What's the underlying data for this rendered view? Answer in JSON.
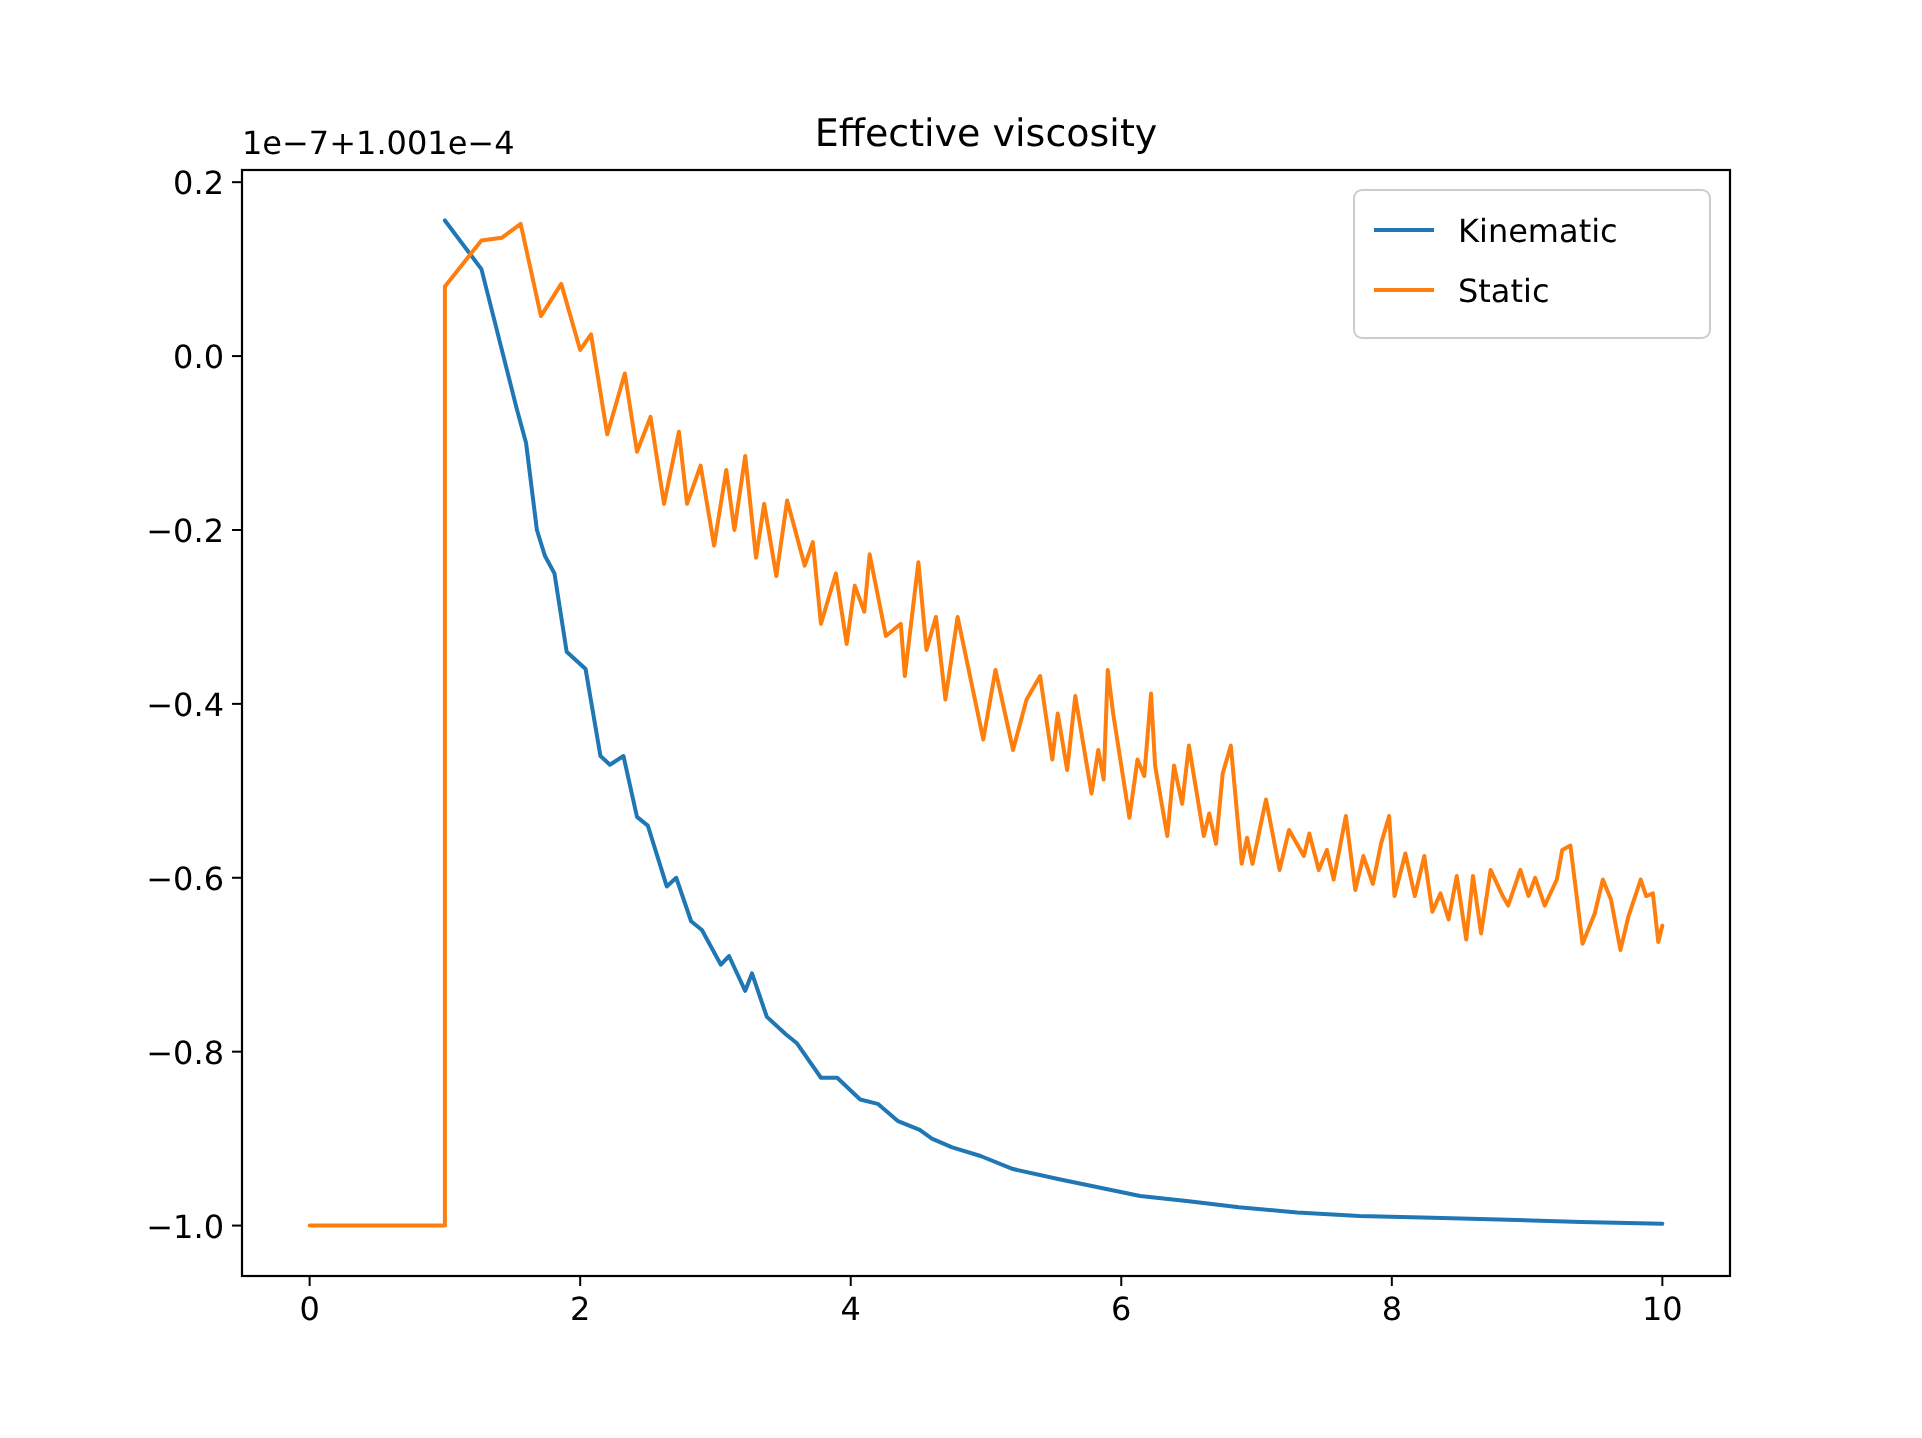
{
  "chart_data": {
    "type": "line",
    "title": "Effective viscosity",
    "annotations": [
      "1e−7+1.001e−4"
    ],
    "xlim": [
      -0.5,
      10.5
    ],
    "xticks": [
      0,
      2,
      4,
      6,
      8,
      10
    ],
    "ylim": [
      -1.058,
      0.214
    ],
    "yticks": [
      {
        "value": -1,
        "label": "−1.0"
      },
      {
        "value": -0.8,
        "label": "−0.8"
      },
      {
        "value": -0.6,
        "label": "−0.6"
      },
      {
        "value": -0.4,
        "label": "−0.4"
      },
      {
        "value": -0.2,
        "label": "−0.2"
      },
      {
        "value": 0,
        "label": "0.0"
      },
      {
        "value": 0.2,
        "label": "0.2"
      }
    ],
    "grid": false,
    "legend": "top right",
    "series": [
      {
        "name": "Kinematic",
        "color": "#1f77b4",
        "x": [
          1.0,
          1.27,
          1.53,
          1.6,
          1.68,
          1.74,
          1.81,
          1.9,
          2.04,
          2.15,
          2.22,
          2.32,
          2.42,
          2.5,
          2.64,
          2.71,
          2.82,
          2.9,
          3.04,
          3.1,
          3.22,
          3.27,
          3.38,
          3.52,
          3.6,
          3.78,
          3.9,
          4.07,
          4.2,
          4.35,
          4.51,
          4.6,
          4.75,
          4.96,
          5.2,
          5.55,
          5.8,
          6.14,
          6.5,
          6.87,
          7.3,
          7.76,
          8.3,
          8.79,
          9.4,
          10
        ],
        "values": [
          0.156,
          0.1,
          -0.06,
          -0.1,
          -0.2,
          -0.23,
          -0.25,
          -0.34,
          -0.36,
          -0.46,
          -0.47,
          -0.46,
          -0.53,
          -0.54,
          -0.61,
          -0.6,
          -0.65,
          -0.66,
          -0.7,
          -0.69,
          -0.73,
          -0.71,
          -0.76,
          -0.78,
          -0.79,
          -0.83,
          -0.83,
          -0.855,
          -0.86,
          -0.88,
          -0.89,
          -0.9,
          -0.91,
          -0.92,
          -0.935,
          -0.947,
          -0.955,
          -0.966,
          -0.972,
          -0.979,
          -0.985,
          -0.989,
          -0.991,
          -0.993,
          -0.996,
          -0.998
        ]
      },
      {
        "name": "Static",
        "color": "#ff7f0e",
        "x": [
          0,
          1,
          1.0,
          1.27,
          1.42,
          1.56,
          1.71,
          1.86,
          2.0,
          2.08,
          2.2,
          2.33,
          2.42,
          2.52,
          2.62,
          2.73,
          2.79,
          2.89,
          2.99,
          3.08,
          3.14,
          3.22,
          3.3,
          3.36,
          3.45,
          3.53,
          3.66,
          3.72,
          3.78,
          3.89,
          3.97,
          4.03,
          4.1,
          4.14,
          4.26,
          4.37,
          4.4,
          4.5,
          4.56,
          4.63,
          4.7,
          4.79,
          4.98,
          5.07,
          5.2,
          5.3,
          5.4,
          5.49,
          5.53,
          5.6,
          5.66,
          5.78,
          5.83,
          5.87,
          5.9,
          5.94,
          6.06,
          6.12,
          6.17,
          6.22,
          6.25,
          6.34,
          6.39,
          6.45,
          6.5,
          6.61,
          6.65,
          6.7,
          6.75,
          6.81,
          6.89,
          6.93,
          6.97,
          7.07,
          7.17,
          7.24,
          7.35,
          7.39,
          7.46,
          7.52,
          7.57,
          7.66,
          7.73,
          7.79,
          7.86,
          7.92,
          7.98,
          8.02,
          8.1,
          8.17,
          8.24,
          8.3,
          8.36,
          8.42,
          8.48,
          8.55,
          8.6,
          8.66,
          8.73,
          8.82,
          8.86,
          8.95,
          9.01,
          9.06,
          9.13,
          9.22,
          9.26,
          9.32,
          9.41,
          9.5,
          9.56,
          9.62,
          9.69,
          9.75,
          9.84,
          9.88,
          9.93,
          9.97,
          10.0
        ],
        "values": [
          -1,
          -1,
          0.08,
          0.133,
          0.136,
          0.152,
          0.046,
          0.083,
          0.007,
          0.025,
          -0.09,
          -0.02,
          -0.11,
          -0.07,
          -0.17,
          -0.087,
          -0.17,
          -0.126,
          -0.218,
          -0.131,
          -0.2,
          -0.115,
          -0.232,
          -0.17,
          -0.253,
          -0.166,
          -0.241,
          -0.214,
          -0.308,
          -0.25,
          -0.331,
          -0.264,
          -0.294,
          -0.228,
          -0.322,
          -0.308,
          -0.368,
          -0.237,
          -0.338,
          -0.3,
          -0.395,
          -0.3,
          -0.441,
          -0.361,
          -0.453,
          -0.395,
          -0.368,
          -0.464,
          -0.411,
          -0.476,
          -0.391,
          -0.503,
          -0.453,
          -0.487,
          -0.361,
          -0.411,
          -0.531,
          -0.464,
          -0.483,
          -0.388,
          -0.471,
          -0.552,
          -0.471,
          -0.515,
          -0.448,
          -0.552,
          -0.526,
          -0.561,
          -0.48,
          -0.448,
          -0.584,
          -0.554,
          -0.584,
          -0.51,
          -0.591,
          -0.545,
          -0.575,
          -0.549,
          -0.591,
          -0.568,
          -0.602,
          -0.529,
          -0.614,
          -0.575,
          -0.607,
          -0.561,
          -0.529,
          -0.621,
          -0.572,
          -0.621,
          -0.575,
          -0.639,
          -0.618,
          -0.648,
          -0.598,
          -0.671,
          -0.598,
          -0.664,
          -0.591,
          -0.621,
          -0.632,
          -0.591,
          -0.621,
          -0.6,
          -0.632,
          -0.602,
          -0.568,
          -0.563,
          -0.676,
          -0.641,
          -0.602,
          -0.625,
          -0.683,
          -0.644,
          -0.602,
          -0.621,
          -0.618,
          -0.674,
          -0.655
        ]
      }
    ]
  }
}
